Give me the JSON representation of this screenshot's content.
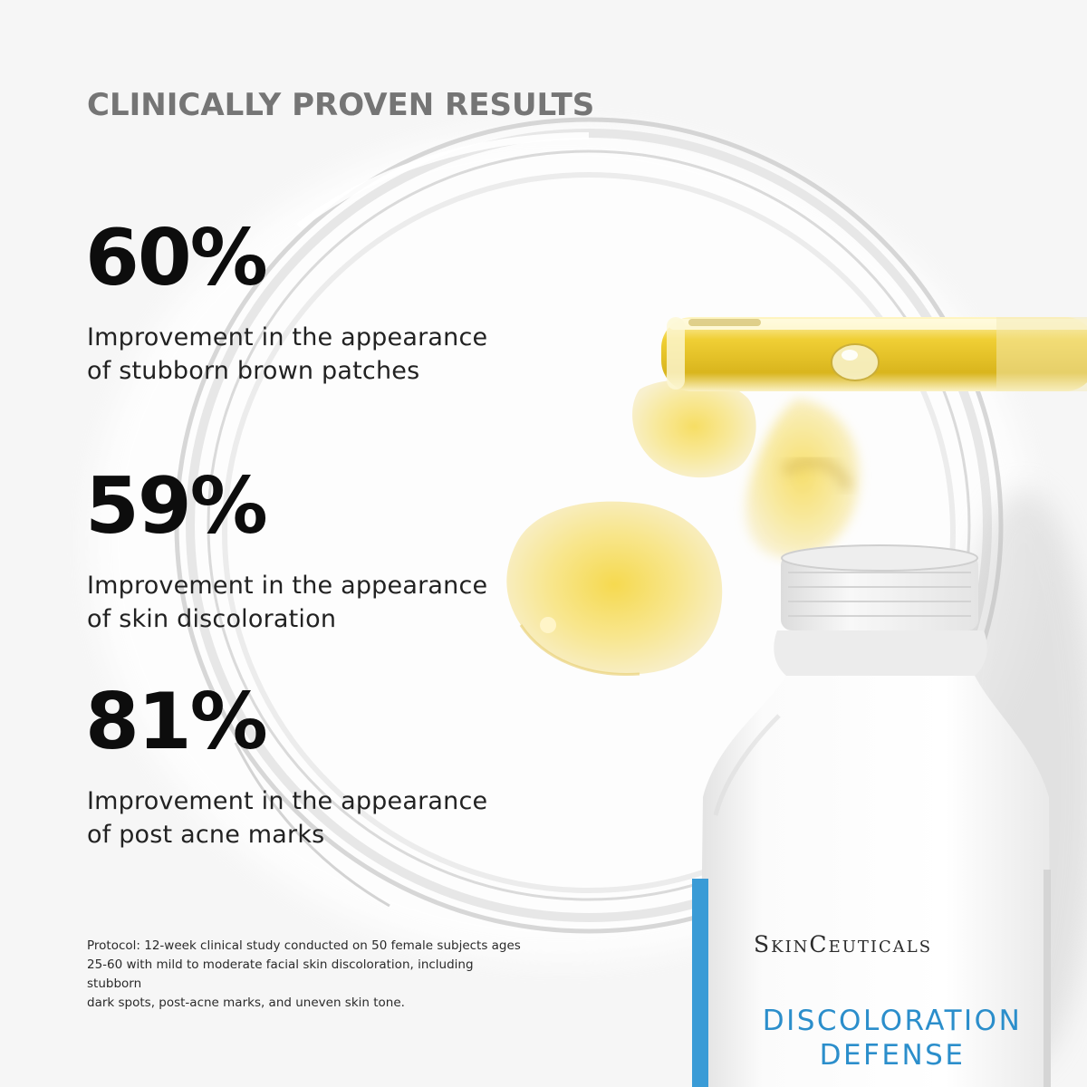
{
  "headline": "CLINICALLY PROVEN RESULTS",
  "stats": [
    {
      "value": "60%",
      "description_line1": "Improvement in the appearance",
      "description_line2": "of stubborn brown patches"
    },
    {
      "value": "59%",
      "description_line1": "Improvement in the appearance",
      "description_line2": "of skin discoloration"
    },
    {
      "value": "81%",
      "description_line1": "Improvement in the appearance",
      "description_line2": "of post acne marks"
    }
  ],
  "protocol": {
    "line1": "Protocol: 12-week clinical study conducted on 50 female subjects ages",
    "line2": "25-60 with mild to moderate facial skin discoloration, including stubborn",
    "line3": "dark spots, post-acne marks, and uneven skin tone."
  },
  "product": {
    "brand": "SkinCeuticals",
    "name_line1": "DISCOLORATION",
    "name_line2": "DEFENSE"
  },
  "colors": {
    "background": "#f6f6f6",
    "headline": "#757575",
    "stat_value": "#0d0d0d",
    "serum_yellow": "#f1cf2e",
    "brand_blue": "#2b8ecb"
  }
}
